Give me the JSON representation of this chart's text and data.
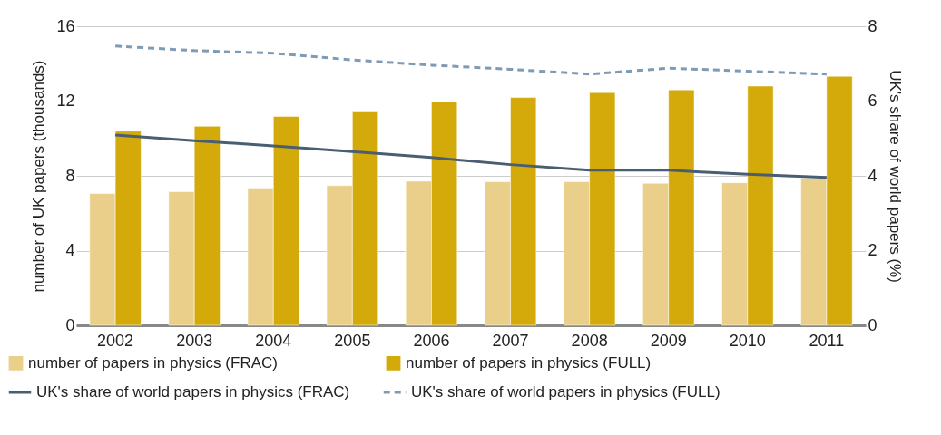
{
  "chart_data": {
    "type": "bar",
    "categories": [
      "2002",
      "2003",
      "2004",
      "2005",
      "2006",
      "2007",
      "2008",
      "2009",
      "2010",
      "2011"
    ],
    "series": [
      {
        "name": "number of papers in physics (FRAC)",
        "color": "#e9cf89",
        "values": [
          7.05,
          7.15,
          7.35,
          7.48,
          7.71,
          7.68,
          7.69,
          7.6,
          7.63,
          7.87
        ]
      },
      {
        "name": "number of papers in physics (FULL)",
        "color": "#d4aa0b",
        "values": [
          10.39,
          10.65,
          11.18,
          11.42,
          11.95,
          12.19,
          12.45,
          12.6,
          12.8,
          13.32
        ]
      },
      {
        "name": "UK's share of world papers in physics (FRAC)",
        "type": "line",
        "axis": "y2",
        "line_style": "solid",
        "color": "#4a5e72",
        "values": [
          5.09,
          4.94,
          4.8,
          4.65,
          4.49,
          4.3,
          4.15,
          4.15,
          4.04,
          3.96
        ]
      },
      {
        "name": "UK's share of world papers in physics (FULL)",
        "type": "line",
        "axis": "y2",
        "line_style": "dashed",
        "color": "#7f9ab5",
        "values": [
          7.47,
          7.35,
          7.28,
          7.1,
          6.96,
          6.85,
          6.72,
          6.88,
          6.8,
          6.72
        ]
      }
    ],
    "ylabel": "number of UK papers (thousands)",
    "y2label": "UK's share of world papers (%)",
    "ylim": [
      0,
      16
    ],
    "yticks": [
      0,
      4,
      8,
      12,
      16
    ],
    "y2lim": [
      0,
      8
    ],
    "y2ticks": [
      0,
      2,
      4,
      6,
      8
    ],
    "grid": "y",
    "legend": "bottom"
  }
}
